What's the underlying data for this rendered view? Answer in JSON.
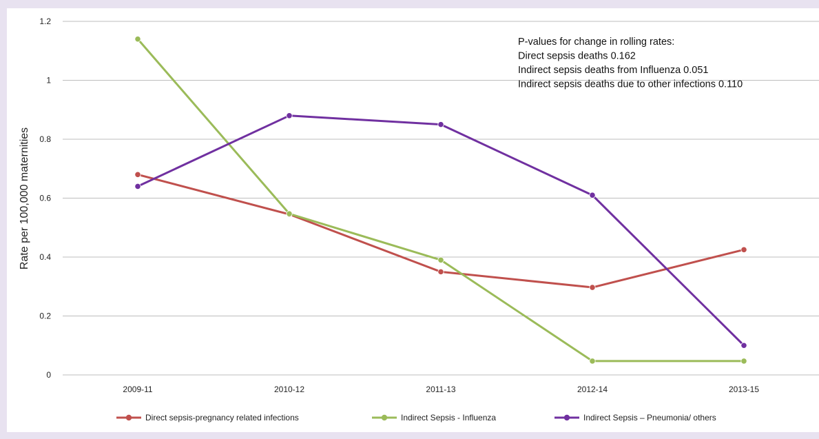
{
  "chart_data": {
    "type": "line",
    "categories": [
      "2009-11",
      "2010-12",
      "2011-13",
      "2012-14",
      "2013-15"
    ],
    "series": [
      {
        "name": "Direct sepsis-pregnancy related infections",
        "color": "#c0504d",
        "values": [
          0.68,
          0.545,
          0.35,
          0.297,
          0.425
        ]
      },
      {
        "name": "Indirect Sepsis - Influenza",
        "color": "#9bbb59",
        "values": [
          1.14,
          0.547,
          0.39,
          0.047,
          0.047
        ]
      },
      {
        "name": "Indirect Sepsis – Pneumonia/ others",
        "color": "#7030a0",
        "values": [
          0.64,
          0.88,
          0.85,
          0.61,
          0.1
        ]
      }
    ],
    "ylabel": "Rate per 100,000 maternities",
    "xlabel": "",
    "ylim": [
      0,
      1.2
    ],
    "yticks": [
      "0",
      "0.2",
      "0.4",
      "0.6",
      "0.8",
      "1",
      "1.2"
    ],
    "grid": true,
    "legend": "bottom",
    "annotation": [
      "P-values for change in rolling rates:",
      "Direct sepsis deaths 0.162",
      "Indirect sepsis deaths from Influenza 0.051",
      "Indirect sepsis deaths due to other infections 0.110"
    ]
  }
}
